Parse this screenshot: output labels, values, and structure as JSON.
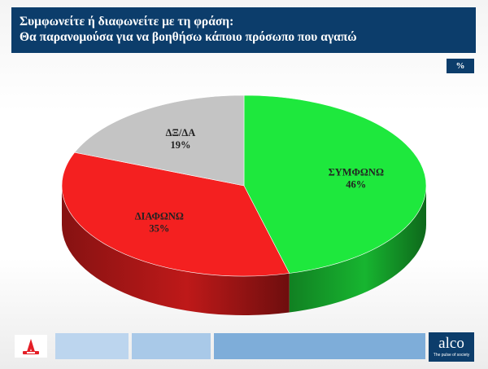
{
  "header": {
    "line1": "Συμφωνείτε ή διαφωνείτε με τη φράση:",
    "line2": "Θα παρανομούσα  για να βοηθήσω κάποιο πρόσωπο που αγαπώ"
  },
  "unit_badge": "%",
  "chart_data": {
    "type": "pie",
    "title": "",
    "slices": [
      {
        "label": "ΣΥΜΦΩΝΩ",
        "value": 46,
        "value_label": "46%",
        "color": "#1ee83d"
      },
      {
        "label": "ΔΙΑΦΩΝΩ",
        "value": 35,
        "value_label": "35%",
        "color": "#f42020"
      },
      {
        "label": "ΔΞ/ΔΑ",
        "value": 19,
        "value_label": "19%",
        "color": "#c4c4c4"
      }
    ]
  },
  "footer": {
    "left_logo_icon": "alpha-tv-logo-icon",
    "alco_word": "alco",
    "alco_tagline": "The pulse of society",
    "bar_colors": [
      "#bcd5ee",
      "#a9c9e8",
      "#7eadd9"
    ]
  }
}
